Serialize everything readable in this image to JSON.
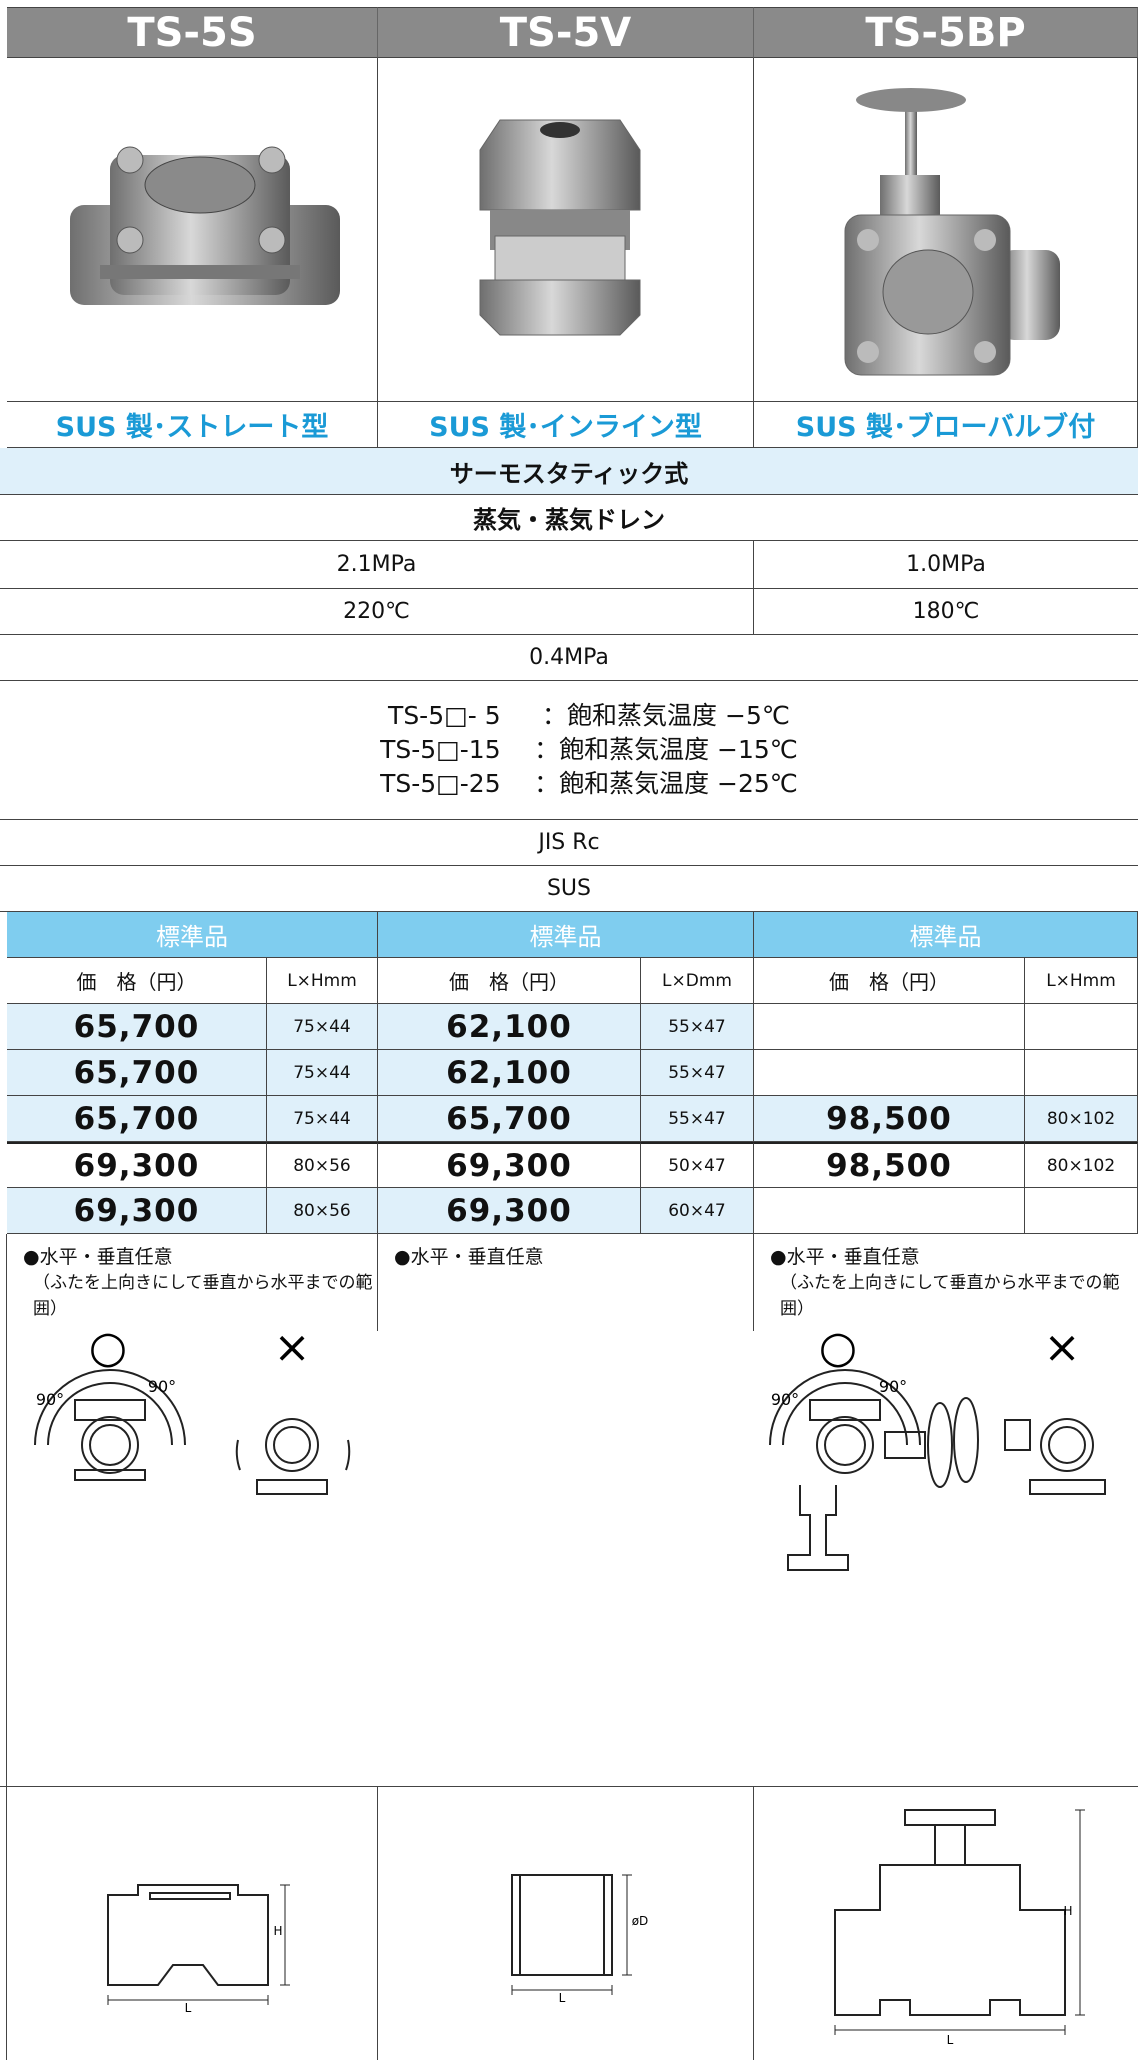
{
  "columns": [
    {
      "model": "TS-5S",
      "subtitle": "SUS 製･ストレート型"
    },
    {
      "model": "TS-5V",
      "subtitle": "SUS 製･インライン型"
    },
    {
      "model": "TS-5BP",
      "subtitle": "SUS 製･ブローバルブ付"
    }
  ],
  "specs": {
    "type": "サーモスタティック式",
    "fluid": "蒸気・蒸気ドレン",
    "max_pressure": [
      "2.1MPa",
      "1.0MPa"
    ],
    "max_temp": [
      "220℃",
      "180℃"
    ],
    "min_pressure": "0.4MPa",
    "set_temps": [
      {
        "code": "TS-5□- 5",
        "desc": "：飽和蒸気温度 −5℃"
      },
      {
        "code": "TS-5□-15",
        "desc": "：飽和蒸気温度 −15℃"
      },
      {
        "code": "TS-5□-25",
        "desc": "：飽和蒸気温度 −25℃"
      }
    ],
    "connection": "JIS Rc",
    "material": "SUS"
  },
  "price_table": {
    "groups": [
      "標準品",
      "標準品",
      "標準品"
    ],
    "headers": [
      "価　格（円）",
      "L×Hmm",
      "価　格（円）",
      "L×Dmm",
      "価　格（円）",
      "L×Hmm"
    ],
    "rows": [
      [
        "65,700",
        "75×44",
        "62,100",
        "55×47",
        null,
        null
      ],
      [
        "65,700",
        "75×44",
        "62,100",
        "55×47",
        null,
        null
      ],
      [
        "65,700",
        "75×44",
        "65,700",
        "55×47",
        "98,500",
        "80×102"
      ],
      [
        "69,300",
        "80×56",
        "69,300",
        "50×47",
        "98,500",
        "80×102"
      ],
      [
        "69,300",
        "80×56",
        "69,300",
        "60×47",
        null,
        null
      ]
    ]
  },
  "notes": [
    {
      "title": "●水平・垂直任意",
      "detail": "（ふたを上向きにして垂直から水平までの範囲）"
    },
    {
      "title": "●水平・垂直任意"
    },
    {
      "title": "●水平・垂直任意",
      "detail": "（ふたを上向きにして垂直から水平までの範囲）"
    }
  ],
  "orientation": {
    "ok": "○",
    "ng": "×",
    "angle": "90°"
  },
  "dimensions": {
    "length": "L",
    "height": "H",
    "diameter": "øD"
  }
}
